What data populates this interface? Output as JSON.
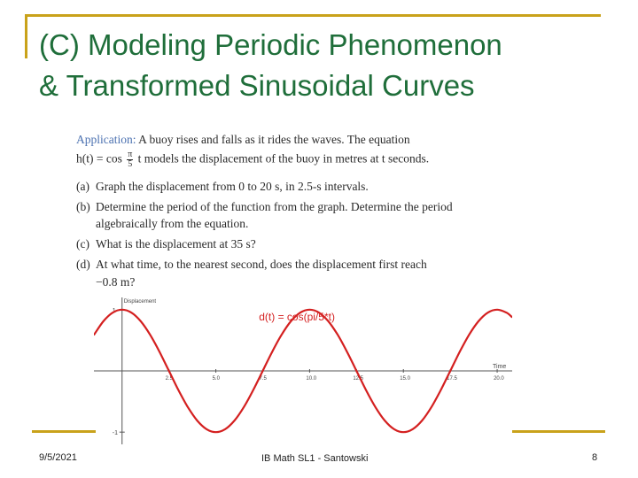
{
  "slide": {
    "title_line1": "(C) Modeling Periodic Phenomenon",
    "title_line2": "& Transformed Sinusoidal Curves",
    "footer": {
      "date": "9/5/2021",
      "center": "IB Math SL1 - Santowski",
      "page": "8"
    },
    "accent_color": "#c9a21a",
    "title_color": "#1f6e3a"
  },
  "problem": {
    "label": "Application:",
    "intro": "A buoy rises and falls as it rides the waves. The equation",
    "eq_lhs": "h(t) = cos",
    "eq_num": "π",
    "eq_den": "5",
    "eq_rest": "t models the displacement of the buoy in metres at t seconds.",
    "parts": [
      {
        "marker": "(a)",
        "text": "Graph the displacement from 0 to 20 s, in 2.5-s intervals."
      },
      {
        "marker": "(b)",
        "text": "Determine the period of the function from the graph. Determine the period"
      },
      {
        "marker": "",
        "text": "algebraically from the equation."
      },
      {
        "marker": "(c)",
        "text": "What is the displacement at 35 s?"
      },
      {
        "marker": "(d)",
        "text": "At what time, to the nearest second, does the displacement first reach"
      },
      {
        "marker": "",
        "text": "−0.8 m?"
      }
    ]
  },
  "chart_data": {
    "type": "line",
    "title": "d(t) = cos(pi/5*t)",
    "xlabel": "Time",
    "ylabel": "Displacement",
    "x_ticks": [
      "2.5",
      "5.0",
      "7.5",
      "10.0",
      "12.5",
      "15.0",
      "17.5",
      "20.0"
    ],
    "y_ticks": [
      "1",
      "-1"
    ],
    "xlim": [
      -1.5,
      20.8
    ],
    "ylim": [
      -1.2,
      1.2
    ],
    "function": "cos(pi/5*t)",
    "series": [
      {
        "color": "#d42020",
        "x": [
          -1.5,
          -1.0,
          -0.5,
          0,
          0.5,
          1.0,
          1.5,
          2.0,
          2.5,
          3.0,
          3.5,
          4.0,
          4.5,
          5.0,
          5.5,
          6.0,
          6.5,
          7.0,
          7.5,
          8.0,
          8.5,
          9.0,
          9.5,
          10.0,
          10.5,
          11.0,
          11.5,
          12.0,
          12.5,
          13.0,
          13.5,
          14.0,
          14.5,
          15.0,
          15.5,
          16.0,
          16.5,
          17.0,
          17.5,
          18.0,
          18.5,
          19.0,
          19.5,
          20.0,
          20.5,
          20.8
        ],
        "y": [
          0.588,
          0.809,
          0.951,
          1.0,
          0.951,
          0.809,
          0.588,
          0.309,
          0.0,
          -0.309,
          -0.588,
          -0.809,
          -0.951,
          -1.0,
          -0.951,
          -0.809,
          -0.588,
          -0.309,
          0.0,
          0.309,
          0.588,
          0.809,
          0.951,
          1.0,
          0.951,
          0.809,
          0.588,
          0.309,
          0.0,
          -0.309,
          -0.588,
          -0.809,
          -0.951,
          -1.0,
          -0.951,
          -0.809,
          -0.588,
          -0.309,
          0.0,
          0.309,
          0.588,
          0.809,
          0.951,
          1.0,
          0.951,
          0.876
        ]
      }
    ],
    "grid": false
  }
}
